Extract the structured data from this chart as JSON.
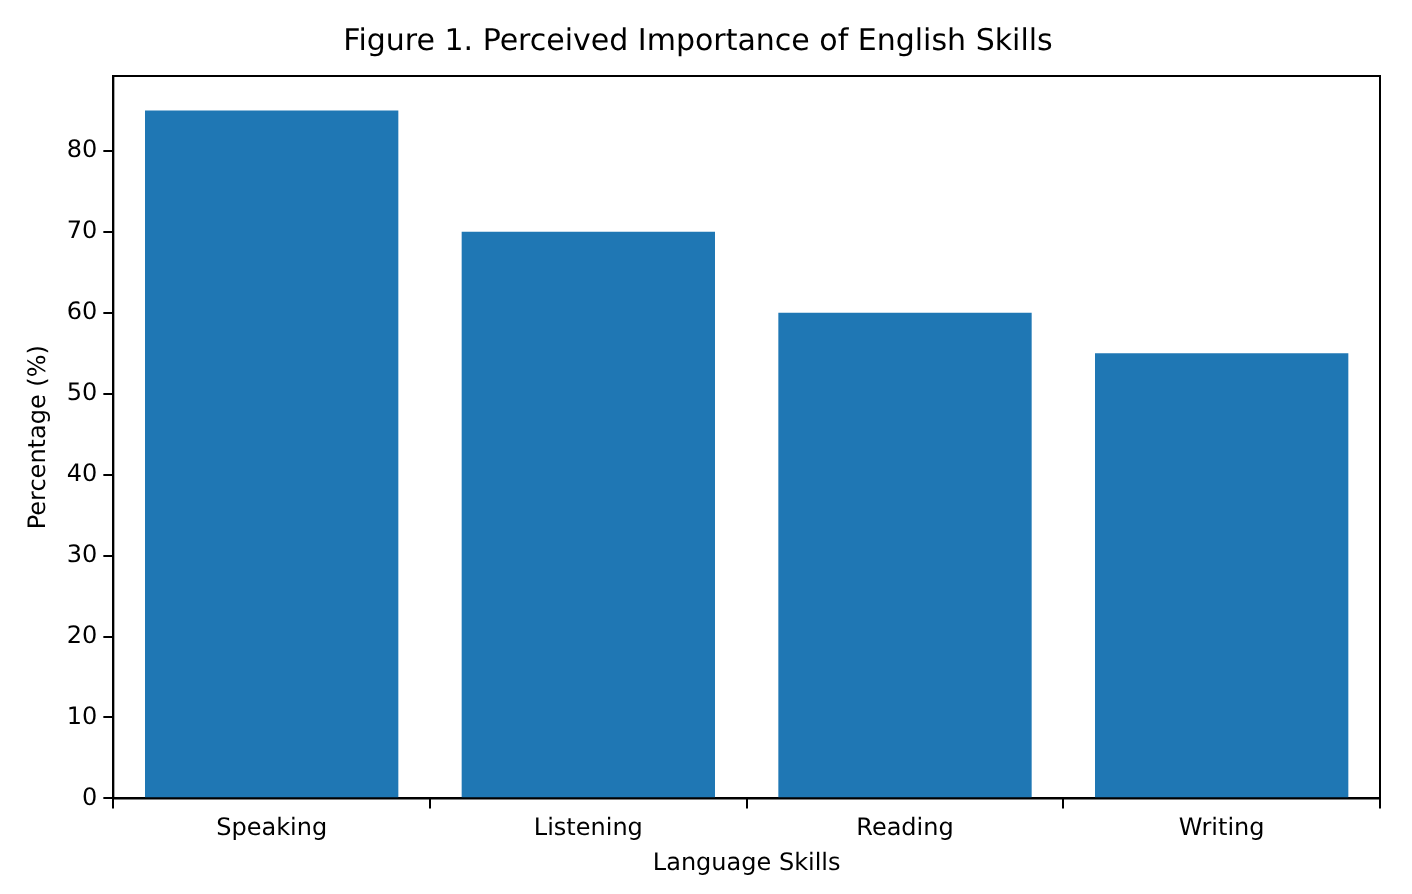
{
  "chart_data": {
    "type": "bar",
    "title": "Figure 1. Perceived Importance of English Skills",
    "xlabel": "Language Skills",
    "ylabel": "Percentage (%)",
    "categories": [
      "Speaking",
      "Listening",
      "Reading",
      "Writing"
    ],
    "values": [
      85,
      70,
      60,
      55
    ],
    "color": "#1f77b4",
    "ylim": [
      0,
      89.25
    ],
    "yticks": [
      0,
      10,
      20,
      30,
      40,
      50,
      60,
      70,
      80
    ],
    "grid": false,
    "legend": false
  }
}
